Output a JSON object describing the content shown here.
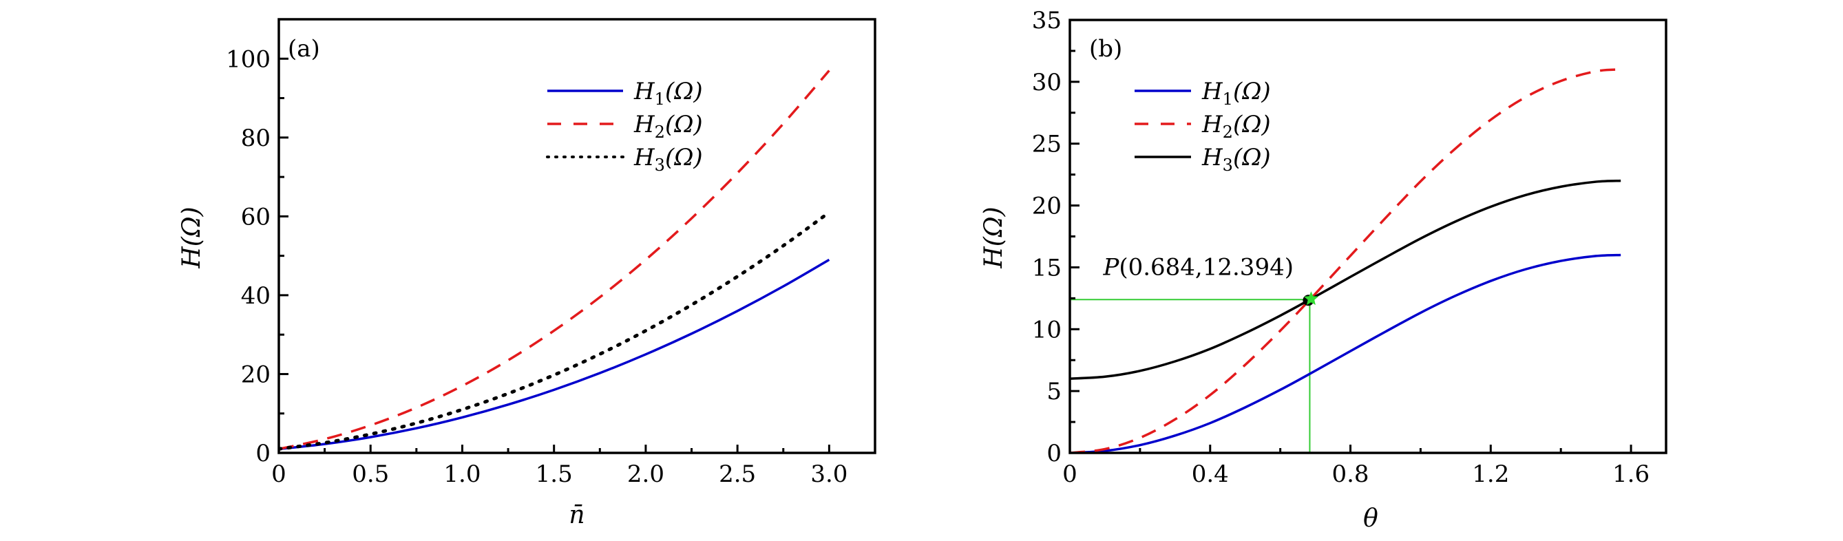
{
  "chart_data": [
    {
      "id": "a",
      "type": "line",
      "panel_label": "(a)",
      "title": "",
      "xlabel": "n̄",
      "ylabel": "H(Ω)",
      "xlim": [
        0,
        3.25
      ],
      "ylim": [
        0,
        110
      ],
      "xticks": [
        0,
        0.5,
        1.0,
        1.5,
        2.0,
        2.5,
        3.0
      ],
      "xtick_labels": [
        "0",
        "0.5",
        "1.0",
        "1.5",
        "2.0",
        "2.5",
        "3.0"
      ],
      "xminor": [
        0.25,
        0.75,
        1.25,
        1.75,
        2.25,
        2.75
      ],
      "yticks": [
        0,
        20,
        40,
        60,
        80,
        100
      ],
      "ytick_labels": [
        "0",
        "20",
        "40",
        "60",
        "80",
        "100"
      ],
      "yminor": [
        10,
        30,
        50,
        70,
        90
      ],
      "grid": false,
      "legend_position": "top-right",
      "x": [
        0,
        0.25,
        0.5,
        0.75,
        1.0,
        1.25,
        1.5,
        1.75,
        2.0,
        2.25,
        2.5,
        2.75,
        3.0
      ],
      "series": [
        {
          "name": "H1(Ω)",
          "legend_main": "H",
          "legend_sub": "1",
          "legend_tail": "(Ω)",
          "color": "#0000cc",
          "style": "solid",
          "values": [
            1,
            2.25,
            4,
            6.25,
            9,
            12.25,
            16,
            20.25,
            25,
            30.25,
            36,
            42.25,
            49
          ]
        },
        {
          "name": "H2(Ω)",
          "legend_main": "H",
          "legend_sub": "2",
          "legend_tail": "(Ω)",
          "color": "#e31a1c",
          "style": "dashed",
          "values": [
            1,
            3.5,
            7,
            11.5,
            17,
            23.5,
            31,
            39.5,
            49,
            59.5,
            71,
            83.5,
            97
          ]
        },
        {
          "name": "H3(Ω)",
          "legend_main": "H",
          "legend_sub": "3",
          "legend_tail": "(Ω)",
          "color": "#000000",
          "style": "dotted",
          "values": [
            1,
            2.56,
            4.75,
            7.56,
            11,
            15.06,
            19.75,
            25.06,
            31,
            37.56,
            44.75,
            52.56,
            61
          ]
        }
      ]
    },
    {
      "id": "b",
      "type": "line",
      "panel_label": "(b)",
      "title": "",
      "xlabel": "θ",
      "ylabel": "H(Ω)",
      "xlim": [
        0,
        1.7
      ],
      "ylim": [
        0,
        35
      ],
      "xticks": [
        0,
        0.4,
        0.8,
        1.2,
        1.6
      ],
      "xtick_labels": [
        "0",
        "0.4",
        "0.8",
        "1.2",
        "1.6"
      ],
      "xminor": [
        0.2,
        0.6,
        1.0,
        1.4
      ],
      "yticks": [
        0,
        5,
        10,
        15,
        20,
        25,
        30,
        35
      ],
      "ytick_labels": [
        "0",
        "5",
        "10",
        "15",
        "20",
        "25",
        "30",
        "35"
      ],
      "yminor": [
        2.5,
        7.5,
        12.5,
        17.5,
        22.5,
        27.5,
        32.5
      ],
      "grid": false,
      "legend_position": "top-left",
      "x": [
        0,
        0.1,
        0.2,
        0.3,
        0.4,
        0.5,
        0.6,
        0.684,
        0.8,
        0.9,
        1.0,
        1.1,
        1.2,
        1.3,
        1.4,
        1.5,
        1.5708
      ],
      "series": [
        {
          "name": "H1(Ω)",
          "legend_main": "H",
          "legend_sub": "1",
          "legend_tail": "(Ω)",
          "color": "#0000cc",
          "style": "solid",
          "values": [
            0,
            0.16,
            0.63,
            1.4,
            2.41,
            3.68,
            5.1,
            6.39,
            8.23,
            9.8,
            11.33,
            12.71,
            13.9,
            14.85,
            15.52,
            15.92,
            16.0
          ]
        },
        {
          "name": "H2(Ω)",
          "legend_main": "H",
          "legend_sub": "2",
          "legend_tail": "(Ω)",
          "color": "#e31a1c",
          "style": "dashed",
          "values": [
            0,
            0.31,
            1.22,
            2.71,
            4.68,
            7.12,
            9.88,
            12.38,
            15.94,
            18.99,
            21.95,
            24.62,
            26.93,
            28.77,
            30.07,
            30.85,
            31.0
          ]
        },
        {
          "name": "H3(Ω)",
          "legend_main": "H",
          "legend_sub": "3",
          "legend_tail": "(Ω)",
          "color": "#000000",
          "style": "solid",
          "values": [
            6,
            6.16,
            6.63,
            7.4,
            8.41,
            9.68,
            11.1,
            12.39,
            14.23,
            15.8,
            17.33,
            18.71,
            19.9,
            20.85,
            21.52,
            21.92,
            22.0
          ]
        }
      ],
      "annotations": [
        {
          "text": "P(0.684,12.394)",
          "point": [
            0.684,
            12.394
          ],
          "marker": "star",
          "marker_color": "#33dd33",
          "guide_color": "#33cc33"
        }
      ]
    }
  ]
}
